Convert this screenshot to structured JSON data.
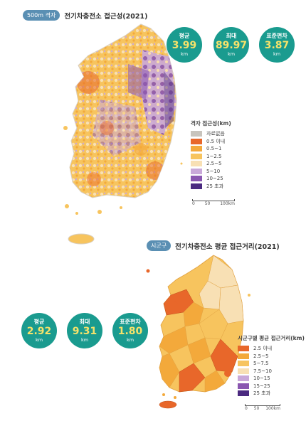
{
  "map1": {
    "tag": "500m 격자",
    "title": "전기차충전소 접근성(2021)",
    "stats": [
      {
        "label": "평균",
        "value": "3.99",
        "unit": "km"
      },
      {
        "label": "최대",
        "value": "89.97",
        "unit": "km"
      },
      {
        "label": "표준편차",
        "value": "3.87",
        "unit": "km"
      }
    ],
    "legend": {
      "title": "격자 접근성(km)",
      "items": [
        {
          "label": "자료없음",
          "color": "#c8c4bd"
        },
        {
          "label": "0.5 이내",
          "color": "#e8672a"
        },
        {
          "label": "0.5~1",
          "color": "#f3a93b"
        },
        {
          "label": "1~2.5",
          "color": "#f7c45e"
        },
        {
          "label": "2.5~5",
          "color": "#f8e0b4"
        },
        {
          "label": "5~10",
          "color": "#c9a8d9"
        },
        {
          "label": "10~25",
          "color": "#8a56b0"
        },
        {
          "label": "25 초과",
          "color": "#4b2a80"
        }
      ]
    },
    "scale": {
      "labels": [
        "0",
        "50",
        "100km"
      ]
    }
  },
  "map2": {
    "tag": "시군구",
    "title": "전기차충전소 평균 접근거리(2021)",
    "stats": [
      {
        "label": "평균",
        "value": "2.92",
        "unit": "km"
      },
      {
        "label": "최대",
        "value": "9.31",
        "unit": "km"
      },
      {
        "label": "표준편차",
        "value": "1.80",
        "unit": "km"
      }
    ],
    "legend": {
      "title": "시군구별 평균 접근거리(km)",
      "items": [
        {
          "label": "2.5 이내",
          "color": "#e8672a"
        },
        {
          "label": "2.5~5",
          "color": "#f3a93b"
        },
        {
          "label": "5~7.5",
          "color": "#f7c45e"
        },
        {
          "label": "7.5~10",
          "color": "#f8e0b4"
        },
        {
          "label": "10~15",
          "color": "#c9a8d9"
        },
        {
          "label": "15~25",
          "color": "#8a56b0"
        },
        {
          "label": "25 초과",
          "color": "#4b2a80"
        }
      ]
    },
    "scale": {
      "labels": [
        "0",
        "50",
        "100km"
      ]
    }
  }
}
